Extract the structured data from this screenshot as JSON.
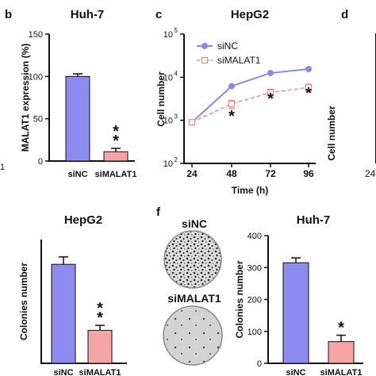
{
  "panels": {
    "b": {
      "letter": "b",
      "title": "Huh-7"
    },
    "c": {
      "letter": "c",
      "title": "HepG2"
    },
    "d": {
      "letter": "d"
    },
    "e": {
      "title": "HepG2"
    },
    "f": {
      "letter": "f",
      "title": "Huh-7",
      "img_label_top": "siNC",
      "img_label_bottom": "siMALAT1"
    }
  },
  "cropped": {
    "a_tick": "1",
    "d_tick_24": "24",
    "d_ylabel": "Cell number"
  },
  "colors": {
    "siNC": "#8b8bf0",
    "siMALAT1": "#f5a3a3",
    "siNC_line": "#8888ee",
    "siMALAT1_line": "#f08c8c"
  },
  "chart_data": [
    {
      "id": "b",
      "type": "bar",
      "title": "Huh-7",
      "ylabel": "MALAT1 expression (%)",
      "categories": [
        "siNC",
        "siMALAT1"
      ],
      "values": [
        100,
        11
      ],
      "errors": [
        3,
        4
      ],
      "ylim": [
        0,
        150
      ],
      "yticks": [
        "0",
        "50",
        "100",
        "150"
      ],
      "annotations": [
        "*",
        "*"
      ]
    },
    {
      "id": "c",
      "type": "line",
      "title": "HepG2",
      "xlabel": "Time (h)",
      "ylabel": "Cell number",
      "x": [
        24,
        48,
        72,
        96
      ],
      "xticks": [
        "24",
        "48",
        "72",
        "96"
      ],
      "yscale": "log",
      "ylim": [
        100,
        100000
      ],
      "yticks": [
        {
          "base": "10",
          "exp": "2"
        },
        {
          "base": "10",
          "exp": "3"
        },
        {
          "base": "10",
          "exp": "4"
        },
        {
          "base": "10",
          "exp": "5"
        }
      ],
      "series": [
        {
          "name": "siNC",
          "values": [
            900,
            6200,
            12500,
            15500
          ],
          "errors": [
            0,
            0,
            0,
            0
          ]
        },
        {
          "name": "siMALAT1",
          "values": [
            900,
            2400,
            4400,
            5800
          ],
          "errors": [
            0,
            500,
            900,
            1100
          ]
        }
      ],
      "annotations": [
        "*",
        "*",
        "*"
      ],
      "legend": "top-left"
    },
    {
      "id": "e",
      "type": "bar",
      "title": "HepG2",
      "ylabel": "Colonies number",
      "categories": [
        "siNC",
        "siMALAT1"
      ],
      "values": [
        240,
        80
      ],
      "errors": [
        18,
        12
      ],
      "ylim": [
        0,
        300
      ],
      "annotations": [
        "*",
        "*"
      ]
    },
    {
      "id": "f",
      "type": "bar",
      "title": "Huh-7",
      "ylabel": "Colonies number",
      "categories": [
        "siNC",
        "siMALAT1"
      ],
      "values": [
        315,
        68
      ],
      "errors": [
        15,
        20
      ],
      "ylim": [
        0,
        400
      ],
      "yticks": [
        "0",
        "100",
        "200",
        "300",
        "400"
      ],
      "annotations": [
        "*"
      ]
    }
  ]
}
